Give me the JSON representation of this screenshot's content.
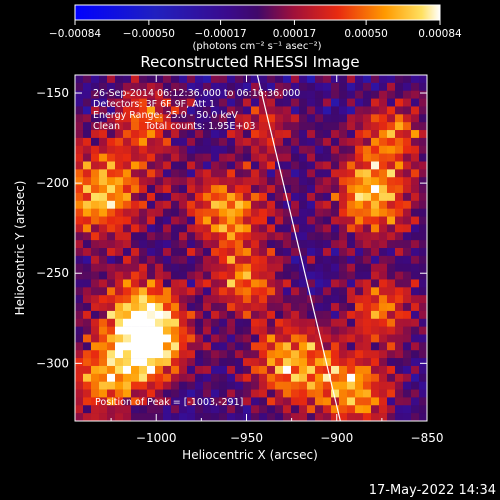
{
  "chart_data": {
    "type": "heatmap",
    "title": "Reconstructed RHESSI Image",
    "xlabel": "Heliocentric X (arcsec)",
    "ylabel": "Heliocentric Y (arcsec)",
    "xlim": [
      -1045,
      -850
    ],
    "ylim": [
      -332,
      -140
    ],
    "xticks": [
      -1000,
      -950,
      -900,
      -850
    ],
    "yticks": [
      -150,
      -200,
      -250,
      -300
    ],
    "xtick_labels": [
      "−1000",
      "−950",
      "−900",
      "−850"
    ],
    "ytick_labels": [
      "−150",
      "−200",
      "−250",
      "−300"
    ],
    "colorbar": {
      "range": [
        -0.00084,
        0.00084
      ],
      "tick_values": [
        -0.00084,
        -0.0005,
        -0.00017,
        0.00017,
        0.0005,
        0.00084
      ],
      "tick_labels": [
        "−0.00084",
        "−0.00050",
        "−0.00017",
        "0.00017",
        "0.00050",
        "0.00084"
      ],
      "units": "(photons cm⁻² s⁻¹ asec⁻²)"
    },
    "annotations": {
      "time_range": "26-Sep-2014 06:12:36.000 to 06:16:36.000",
      "detectors": "Detectors: 3F 6F 9F, Att 1",
      "energy": "Energy Range: 25.0 - 50.0 keV",
      "method": "Clean",
      "counts": "Total counts: 1.95E+03",
      "peak": "Position of Peak = [-1003,-291]"
    },
    "limb_line": {
      "x": [
        -944,
        -898
      ],
      "y": [
        -140,
        -332
      ]
    },
    "blobs": [
      {
        "x": -1030,
        "y": -205,
        "amp": 1.0,
        "s": 18
      },
      {
        "x": -1005,
        "y": -165,
        "amp": 0.7,
        "s": 14
      },
      {
        "x": -1010,
        "y": -270,
        "amp": 0.85,
        "s": 16
      },
      {
        "x": -1003,
        "y": -291,
        "amp": 1.2,
        "s": 14
      },
      {
        "x": -1030,
        "y": -310,
        "amp": 0.8,
        "s": 15
      },
      {
        "x": -960,
        "y": -215,
        "amp": 0.9,
        "s": 16
      },
      {
        "x": -950,
        "y": -255,
        "amp": 0.75,
        "s": 14
      },
      {
        "x": -940,
        "y": -170,
        "amp": 0.6,
        "s": 12
      },
      {
        "x": -925,
        "y": -300,
        "amp": 0.95,
        "s": 16
      },
      {
        "x": -880,
        "y": -205,
        "amp": 1.0,
        "s": 17
      },
      {
        "x": -868,
        "y": -170,
        "amp": 0.7,
        "s": 12
      },
      {
        "x": -875,
        "y": -270,
        "amp": 0.7,
        "s": 14
      },
      {
        "x": -890,
        "y": -315,
        "amp": 0.9,
        "s": 15
      }
    ]
  },
  "footer": {
    "timestamp": "17-May-2022 14:34"
  }
}
